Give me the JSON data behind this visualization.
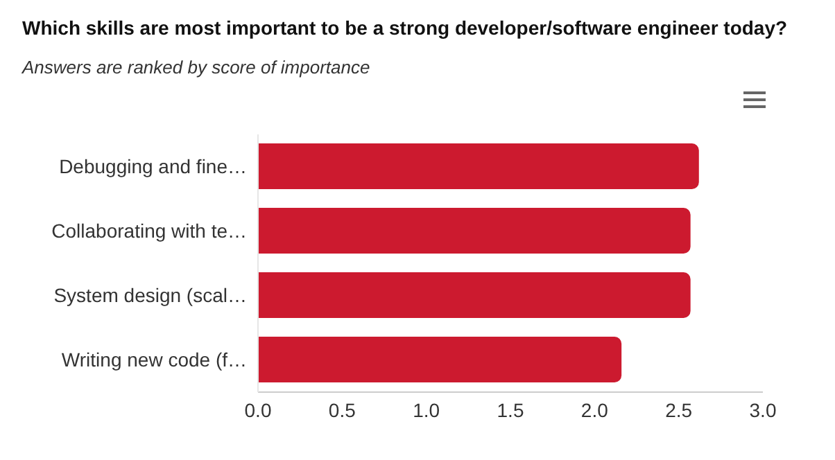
{
  "chart_data": {
    "type": "bar",
    "orientation": "horizontal",
    "title": "Which skills are most important to be a strong developer/software engineer today?",
    "subtitle": "Answers are ranked by score of importance",
    "categories": [
      "Debugging and fine…",
      "Collaborating with te…",
      "System design (scal…",
      "Writing new code (f…"
    ],
    "values": [
      2.62,
      2.57,
      2.57,
      2.16
    ],
    "color": "#cc1a2f",
    "xlim": [
      0,
      3
    ],
    "xticks": [
      {
        "value": 0,
        "label": "0.0"
      },
      {
        "value": 0.5,
        "label": "0.5"
      },
      {
        "value": 1,
        "label": "1.0"
      },
      {
        "value": 1.5,
        "label": "1.5"
      },
      {
        "value": 2,
        "label": "2.0"
      },
      {
        "value": 2.5,
        "label": "2.5"
      },
      {
        "value": 3,
        "label": "3.0"
      }
    ],
    "grid": false
  }
}
